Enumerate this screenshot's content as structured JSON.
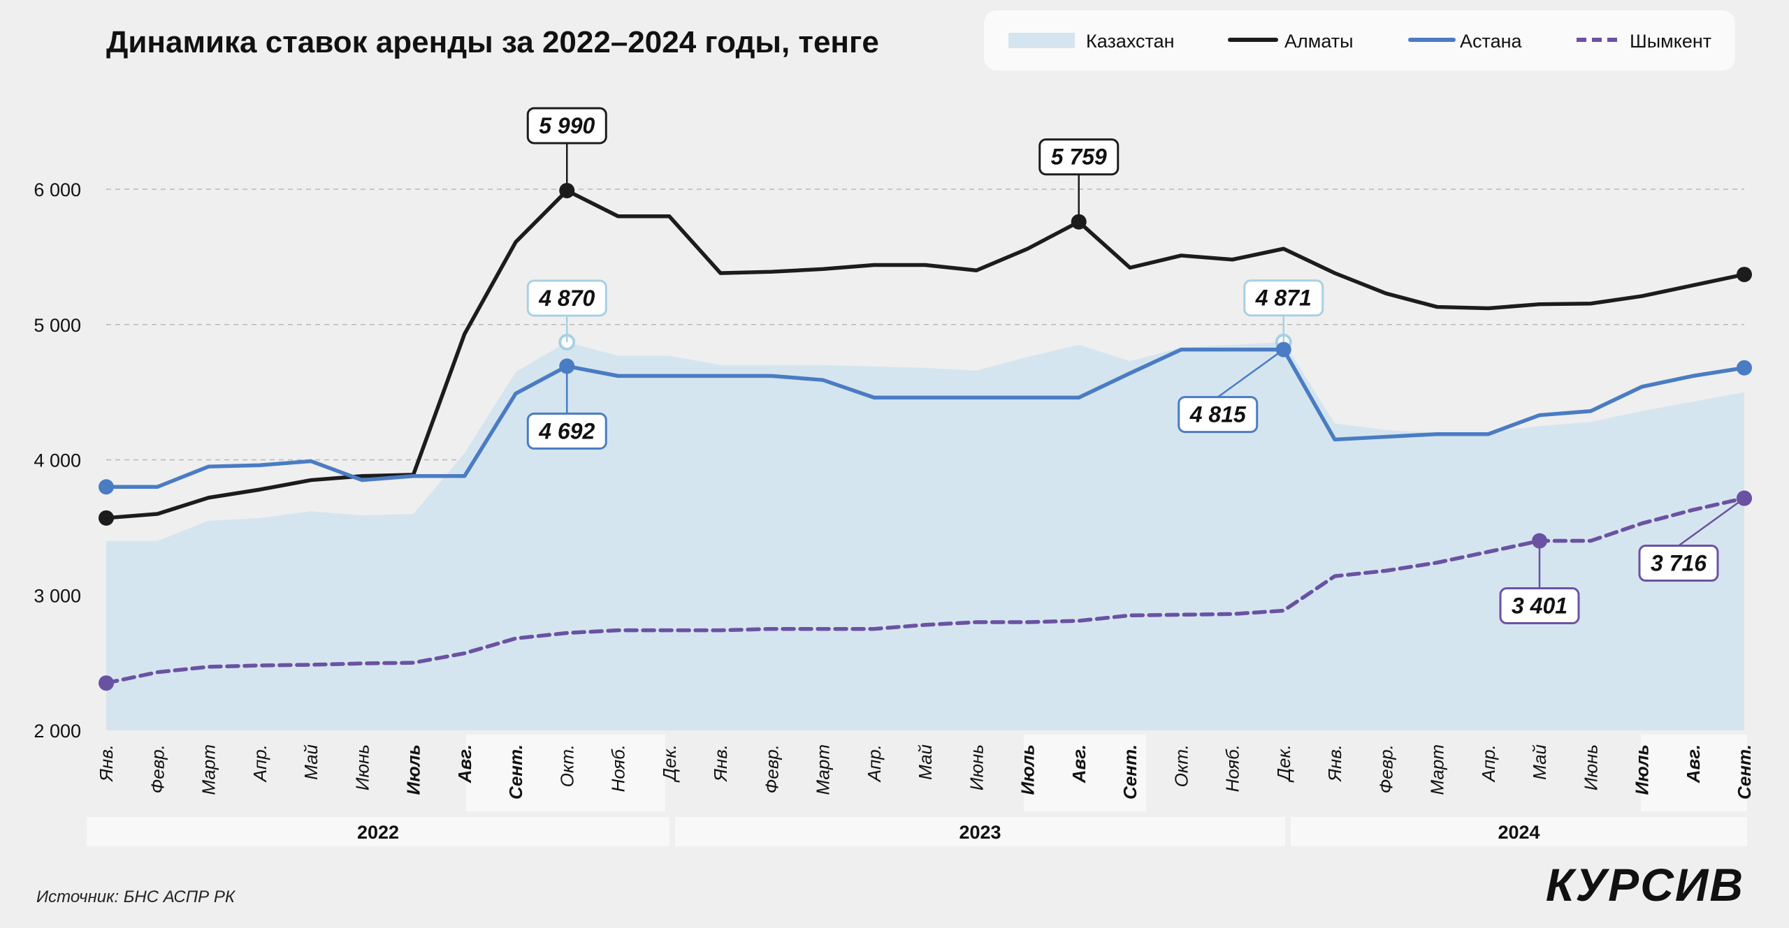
{
  "title": "Динамика ставок аренды за 2022–2024 годы, тенге",
  "source": "Источник: БНС АСПР РК",
  "brand": "КУРСИВ",
  "colors": {
    "background": "#efefef",
    "kazakhstan_fill": "#d5e5ef",
    "almaty": "#1c1c1c",
    "astana": "#4a7cc3",
    "shymkent": "#6a52a3",
    "kz_marker": "#a8d0e4",
    "grid": "#b8b8b8",
    "year_band": "#f8f8f8"
  },
  "chart_data": {
    "type": "line",
    "title": "Динамика ставок аренды за 2022–2024 годы, тенге",
    "xlabel": "",
    "ylabel": "",
    "ylim": [
      2000,
      6500
    ],
    "yticks": [
      2000,
      3000,
      4000,
      5000,
      6000
    ],
    "ytick_labels": [
      "2 000",
      "3 000",
      "4 000",
      "5 000",
      "6 000"
    ],
    "grid": true,
    "legend_position": "top-right",
    "categories": [
      "Янв.",
      "Февр.",
      "Март",
      "Апр.",
      "Май",
      "Июнь",
      "Июль",
      "Авг.",
      "Сент.",
      "Окт.",
      "Нояб.",
      "Дек.",
      "Янв.",
      "Февр.",
      "Март",
      "Апр.",
      "Май",
      "Июнь",
      "Июль",
      "Авг.",
      "Сент.",
      "Окт.",
      "Нояб.",
      "Дек.",
      "Янв.",
      "Февр.",
      "Март",
      "Апр.",
      "Май",
      "Июнь",
      "Июль",
      "Авг.",
      "Сент."
    ],
    "bold_categories": [
      6,
      7,
      8,
      18,
      19,
      20,
      30,
      31,
      32
    ],
    "years": [
      {
        "label": "2022",
        "start": 0,
        "end": 11
      },
      {
        "label": "2023",
        "start": 12,
        "end": 23
      },
      {
        "label": "2024",
        "start": 24,
        "end": 32
      }
    ],
    "series": [
      {
        "name": "Казахстан",
        "style": "area",
        "values": [
          3400,
          3400,
          3550,
          3570,
          3620,
          3590,
          3600,
          4050,
          4650,
          4870,
          4770,
          4770,
          4700,
          4700,
          4700,
          4690,
          4680,
          4660,
          4760,
          4850,
          4730,
          4830,
          4850,
          4871,
          4270,
          4220,
          4200,
          4200,
          4250,
          4280,
          4360,
          4430,
          4500
        ]
      },
      {
        "name": "Алматы",
        "style": "line",
        "values": [
          3570,
          3600,
          3720,
          3780,
          3850,
          3880,
          3890,
          4930,
          5610,
          5990,
          5800,
          5800,
          5380,
          5390,
          5410,
          5440,
          5440,
          5400,
          5560,
          5759,
          5420,
          5510,
          5480,
          5560,
          5380,
          5230,
          5130,
          5120,
          5150,
          5155,
          5210,
          5290,
          5370
        ]
      },
      {
        "name": "Астана",
        "style": "line",
        "values": [
          3800,
          3800,
          3950,
          3960,
          3990,
          3850,
          3880,
          3880,
          4490,
          4692,
          4620,
          4620,
          4620,
          4620,
          4590,
          4460,
          4460,
          4460,
          4460,
          4460,
          4640,
          4815,
          4815,
          4815,
          4150,
          4170,
          4190,
          4190,
          4330,
          4360,
          4540,
          4620,
          4680
        ]
      },
      {
        "name": "Шымкент",
        "style": "dashed",
        "values": [
          2350,
          2430,
          2470,
          2480,
          2485,
          2495,
          2500,
          2570,
          2680,
          2720,
          2740,
          2740,
          2740,
          2750,
          2750,
          2750,
          2780,
          2800,
          2800,
          2810,
          2850,
          2855,
          2860,
          2885,
          3140,
          3180,
          3240,
          3320,
          3401,
          3401,
          3530,
          3630,
          3716
        ]
      }
    ],
    "annotations": [
      {
        "series": "Алматы",
        "index": 9,
        "label": "5 990",
        "position": "above"
      },
      {
        "series": "Алматы",
        "index": 19,
        "label": "5 759",
        "position": "above"
      },
      {
        "series": "Казахстан",
        "index": 9,
        "label": "4 870",
        "position": "above"
      },
      {
        "series": "Астана",
        "index": 9,
        "label": "4 692",
        "position": "below"
      },
      {
        "series": "Казахстан",
        "index": 23,
        "label": "4 871",
        "position": "above"
      },
      {
        "series": "Астана",
        "index": 23,
        "label": "4 815",
        "position": "below-left"
      },
      {
        "series": "Шымкент",
        "index": 28,
        "label": "3 401",
        "position": "below"
      },
      {
        "series": "Шымкент",
        "index": 32,
        "label": "3 716",
        "position": "below-left"
      }
    ],
    "start_markers": [
      "Алматы",
      "Астана",
      "Шымкент"
    ],
    "end_markers": [
      "Алматы",
      "Астана",
      "Шымкент"
    ]
  }
}
